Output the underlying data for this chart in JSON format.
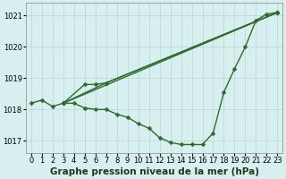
{
  "lines": [
    {
      "x": [
        0,
        1,
        2,
        3,
        4,
        5,
        6,
        7,
        8,
        9,
        10,
        11,
        12,
        13,
        14,
        15,
        16,
        17,
        18,
        19,
        20,
        21,
        22,
        23
      ],
      "y": [
        1018.2,
        1018.3,
        1018.1,
        1018.2,
        1018.2,
        1018.05,
        1018.0,
        1018.0,
        1017.85,
        1017.75,
        1017.55,
        1017.4,
        1017.1,
        1016.95,
        1016.88,
        1016.88,
        1016.88,
        1017.25,
        1018.55,
        1019.3,
        1020.0,
        1020.85,
        1021.05,
        1021.1
      ]
    },
    {
      "x": [
        3,
        23
      ],
      "y": [
        1018.2,
        1021.1
      ]
    },
    {
      "x": [
        3,
        7,
        23
      ],
      "y": [
        1018.2,
        1018.85,
        1021.1
      ]
    },
    {
      "x": [
        3,
        5,
        6,
        7,
        23
      ],
      "y": [
        1018.2,
        1018.8,
        1018.8,
        1018.85,
        1021.1
      ]
    }
  ],
  "line_color": "#2d6a2d",
  "marker_color": "#2d6a2d",
  "bg_color": "#d8eff0",
  "grid_color": "#b8d8d8",
  "xlabel": "Graphe pression niveau de la mer (hPa)",
  "xlim": [
    -0.5,
    23.5
  ],
  "ylim": [
    1016.6,
    1021.4
  ],
  "yticks": [
    1017,
    1018,
    1019,
    1020,
    1021
  ],
  "xticks": [
    0,
    1,
    2,
    3,
    4,
    5,
    6,
    7,
    8,
    9,
    10,
    11,
    12,
    13,
    14,
    15,
    16,
    17,
    18,
    19,
    20,
    21,
    22,
    23
  ],
  "xlabel_fontsize": 7.5,
  "tick_fontsize": 6,
  "marker_size": 2.5,
  "line_width": 1.0
}
